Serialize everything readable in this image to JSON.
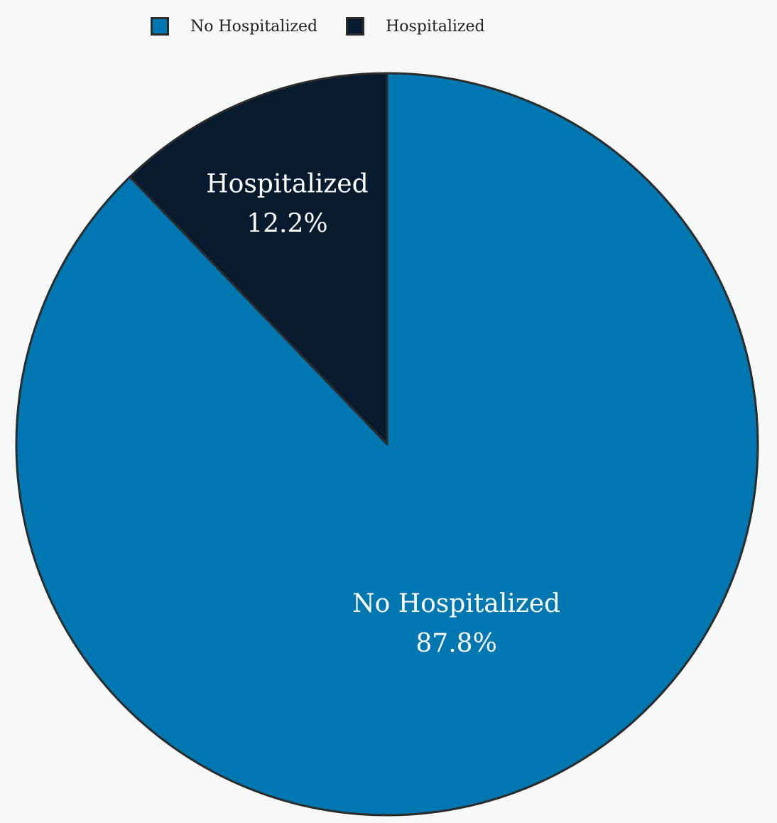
{
  "chart_data": {
    "type": "pie",
    "categories": [
      "No Hospitalized",
      "Hospitalized"
    ],
    "values": [
      87.8,
      12.2
    ],
    "value_labels": [
      "87.8%",
      "12.2%"
    ],
    "colors": [
      "#0077b0",
      "#071a2e"
    ],
    "border_color": "#2b2b2b",
    "legend": {
      "position": "top-center",
      "items": [
        {
          "label": "No Hospitalized",
          "color": "#0077b0"
        },
        {
          "label": "Hospitalized",
          "color": "#071a2e"
        }
      ]
    }
  }
}
